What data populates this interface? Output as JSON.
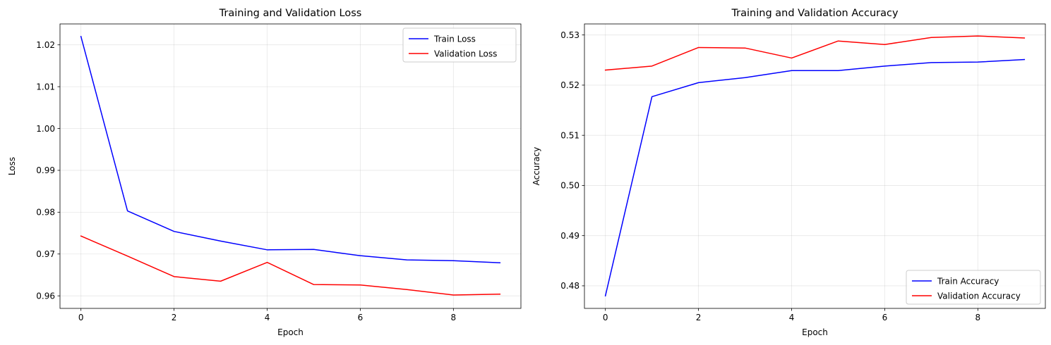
{
  "chart_data": [
    {
      "type": "line",
      "title": "Training and Validation Loss",
      "xlabel": "Epoch",
      "ylabel": "Loss",
      "x": [
        0,
        1,
        2,
        3,
        4,
        5,
        6,
        7,
        8,
        9
      ],
      "xlim": [
        -0.45,
        9.45
      ],
      "ylim": [
        0.957,
        1.025
      ],
      "xticks": [
        0,
        2,
        4,
        6,
        8
      ],
      "yticks": [
        0.96,
        0.97,
        0.98,
        0.99,
        1.0,
        1.01,
        1.02
      ],
      "xtick_labels": [
        "0",
        "2",
        "4",
        "6",
        "8"
      ],
      "ytick_labels": [
        "0.96",
        "0.97",
        "0.98",
        "0.99",
        "1.00",
        "1.01",
        "1.02"
      ],
      "grid": true,
      "legend_position": "top-right",
      "series": [
        {
          "name": "Train Loss",
          "color": "#0000ff",
          "values": [
            1.022,
            0.9803,
            0.9754,
            0.9731,
            0.971,
            0.9711,
            0.9696,
            0.9686,
            0.9684,
            0.9679
          ]
        },
        {
          "name": "Validation Loss",
          "color": "#ff0000",
          "values": [
            0.9743,
            0.9695,
            0.9646,
            0.9635,
            0.968,
            0.9627,
            0.9626,
            0.9615,
            0.9602,
            0.9604
          ]
        }
      ]
    },
    {
      "type": "line",
      "title": "Training and Validation Accuracy",
      "xlabel": "Epoch",
      "ylabel": "Accuracy",
      "x": [
        0,
        1,
        2,
        3,
        4,
        5,
        6,
        7,
        8,
        9
      ],
      "xlim": [
        -0.45,
        9.45
      ],
      "ylim": [
        0.4755,
        0.5322
      ],
      "xticks": [
        0,
        2,
        4,
        6,
        8
      ],
      "yticks": [
        0.48,
        0.49,
        0.5,
        0.51,
        0.52,
        0.53
      ],
      "xtick_labels": [
        "0",
        "2",
        "4",
        "6",
        "8"
      ],
      "ytick_labels": [
        "0.48",
        "0.49",
        "0.50",
        "0.51",
        "0.52",
        "0.53"
      ],
      "grid": true,
      "legend_position": "bottom-right",
      "series": [
        {
          "name": "Train Accuracy",
          "color": "#0000ff",
          "values": [
            0.478,
            0.5177,
            0.5205,
            0.5215,
            0.5229,
            0.5229,
            0.5238,
            0.5245,
            0.5246,
            0.5251
          ]
        },
        {
          "name": "Validation Accuracy",
          "color": "#ff0000",
          "values": [
            0.523,
            0.5238,
            0.5275,
            0.5274,
            0.5254,
            0.5288,
            0.5281,
            0.5295,
            0.5298,
            0.5294
          ]
        }
      ]
    }
  ]
}
